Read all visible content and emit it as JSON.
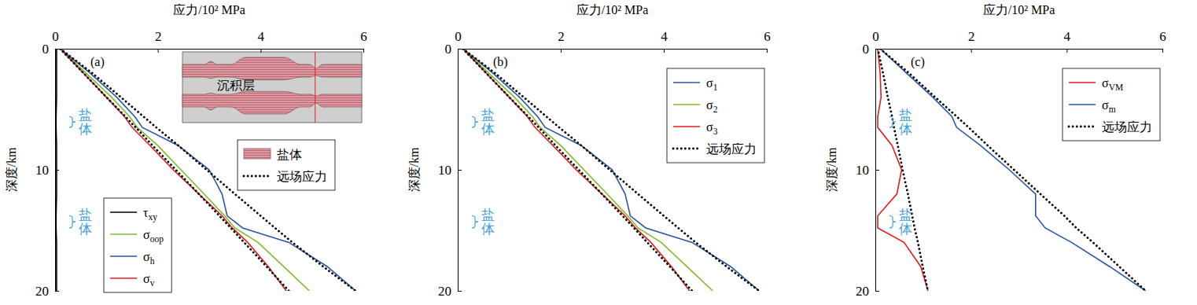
{
  "chart_data": [
    {
      "type": "line",
      "label": "(a)",
      "xlabel": "应力/10² MPa",
      "ylabel": "深度/km",
      "xlim": [
        0,
        6
      ],
      "ylim": [
        0,
        20
      ],
      "xticks": [
        0,
        2,
        4,
        6
      ],
      "yticks": [
        0,
        10,
        20
      ],
      "legend": "bottom-left",
      "y": [
        0,
        2,
        4,
        5.6,
        6.5,
        8,
        10,
        12,
        13.8,
        14.8,
        16,
        18,
        20
      ],
      "series": [
        {
          "name": "τxy",
          "color": "#000000",
          "line_style": "solid",
          "values": [
            0.03,
            0.03,
            0.03,
            0.02,
            0.02,
            0.03,
            0.03,
            0.03,
            0.02,
            0.02,
            0.03,
            0.03,
            0.03
          ]
        },
        {
          "name": "σoop",
          "color": "#7cbf2a",
          "line_style": "solid",
          "values": [
            0.1,
            0.6,
            1.1,
            1.45,
            1.6,
            2.0,
            2.45,
            2.9,
            3.3,
            3.5,
            3.95,
            4.45,
            4.95
          ]
        },
        {
          "name": "σh",
          "color": "#2958a8",
          "line_style": "solid",
          "values": [
            0.1,
            0.68,
            1.2,
            1.55,
            1.7,
            2.4,
            3.0,
            3.25,
            3.35,
            3.65,
            4.55,
            5.3,
            5.85
          ]
        },
        {
          "name": "σv",
          "color": "#e02020",
          "line_style": "solid",
          "values": [
            0.1,
            0.55,
            1.0,
            1.35,
            1.5,
            1.85,
            2.3,
            2.8,
            3.25,
            3.45,
            3.75,
            4.15,
            4.5
          ]
        },
        {
          "name": "远场应力",
          "color": "#000000",
          "line_style": "dotted",
          "values": [
            0.1,
            0.72,
            1.28,
            1.72,
            1.97,
            2.4,
            2.95,
            3.5,
            4.0,
            4.28,
            4.62,
            5.22,
            5.85
          ]
        },
        {
          "color": "#000000",
          "line_style": "dotted",
          "values": [
            0.1,
            0.55,
            1.0,
            1.37,
            1.57,
            1.9,
            2.35,
            2.8,
            3.2,
            3.42,
            3.68,
            4.12,
            4.55
          ]
        }
      ],
      "annotations": [
        {
          "text": "盐体",
          "y": [
            5.6,
            6.5
          ],
          "color": "#3aa0dc"
        },
        {
          "text": "盐体",
          "y": [
            13.8,
            14.8
          ],
          "color": "#3aa0dc"
        }
      ],
      "inset": {
        "label": "沉积层",
        "legend": [
          {
            "name": "盐体",
            "color": "#e3949e"
          }
        ]
      }
    },
    {
      "type": "line",
      "label": "(b)",
      "xlabel": "应力/10² MPa",
      "ylabel": "深度/km",
      "xlim": [
        0,
        6
      ],
      "ylim": [
        0,
        20
      ],
      "xticks": [
        0,
        2,
        4,
        6
      ],
      "yticks": [
        0,
        10,
        20
      ],
      "legend": "top-right",
      "y": [
        0,
        2,
        4,
        5.6,
        6.5,
        8,
        10,
        12,
        13.8,
        14.8,
        16,
        18,
        20
      ],
      "series": [
        {
          "name": "σ1",
          "color": "#2958a8",
          "line_style": "solid",
          "values": [
            0.1,
            0.68,
            1.2,
            1.55,
            1.7,
            2.4,
            3.0,
            3.25,
            3.35,
            3.65,
            4.55,
            5.3,
            5.85
          ]
        },
        {
          "name": "σ2",
          "color": "#7cbf2a",
          "line_style": "solid",
          "values": [
            0.1,
            0.6,
            1.1,
            1.45,
            1.6,
            2.0,
            2.45,
            2.9,
            3.3,
            3.5,
            3.95,
            4.45,
            4.95
          ]
        },
        {
          "name": "σ3",
          "color": "#e02020",
          "line_style": "solid",
          "values": [
            0.1,
            0.55,
            1.0,
            1.35,
            1.5,
            1.85,
            2.3,
            2.8,
            3.25,
            3.45,
            3.75,
            4.15,
            4.5
          ]
        },
        {
          "name": "远场应力",
          "color": "#000000",
          "line_style": "dotted",
          "values": [
            0.1,
            0.72,
            1.28,
            1.72,
            1.97,
            2.4,
            2.95,
            3.5,
            4.0,
            4.28,
            4.62,
            5.22,
            5.85
          ]
        },
        {
          "color": "#000000",
          "line_style": "dotted",
          "values": [
            0.1,
            0.55,
            1.0,
            1.37,
            1.57,
            1.9,
            2.35,
            2.8,
            3.2,
            3.42,
            3.68,
            4.12,
            4.55
          ]
        }
      ],
      "annotations": [
        {
          "text": "盐体",
          "y": [
            5.6,
            6.5
          ],
          "color": "#3aa0dc"
        },
        {
          "text": "盐体",
          "y": [
            13.8,
            14.8
          ],
          "color": "#3aa0dc"
        }
      ]
    },
    {
      "type": "line",
      "label": "(c)",
      "xlabel": "应力/10² MPa",
      "ylabel": "深度/km",
      "xlim": [
        0,
        6
      ],
      "ylim": [
        0,
        20
      ],
      "xticks": [
        0,
        2,
        4,
        6
      ],
      "yticks": [
        0,
        10,
        20
      ],
      "legend": "top-right",
      "y": [
        0,
        2,
        4,
        5.6,
        6.5,
        8,
        10,
        12,
        13.8,
        14.8,
        16,
        18,
        20
      ],
      "series": [
        {
          "name": "σVM",
          "color": "#e02020",
          "line_style": "solid",
          "values": [
            0.05,
            0.1,
            0.12,
            0.05,
            0.05,
            0.35,
            0.55,
            0.45,
            0.05,
            0.05,
            0.6,
            0.95,
            1.1
          ]
        },
        {
          "name": "σm",
          "color": "#2958a8",
          "line_style": "solid",
          "values": [
            0.1,
            0.65,
            1.2,
            1.6,
            1.7,
            2.2,
            2.8,
            3.35,
            3.35,
            3.55,
            4.1,
            4.9,
            5.65
          ]
        },
        {
          "name": "远场应力",
          "color": "#000000",
          "line_style": "dotted",
          "values": [
            0.1,
            0.7,
            1.25,
            1.7,
            1.95,
            2.35,
            2.9,
            3.45,
            3.95,
            4.2,
            4.55,
            5.1,
            5.65
          ]
        },
        {
          "color": "#000000",
          "line_style": "dotted",
          "values": [
            0.05,
            0.16,
            0.26,
            0.35,
            0.39,
            0.47,
            0.57,
            0.68,
            0.77,
            0.82,
            0.89,
            0.99,
            1.1
          ]
        }
      ],
      "annotations": [
        {
          "text": "盐体",
          "y": [
            5.6,
            6.5
          ],
          "color": "#3aa0dc"
        },
        {
          "text": "盐体",
          "y": [
            13.8,
            14.8
          ],
          "color": "#3aa0dc"
        }
      ]
    }
  ]
}
